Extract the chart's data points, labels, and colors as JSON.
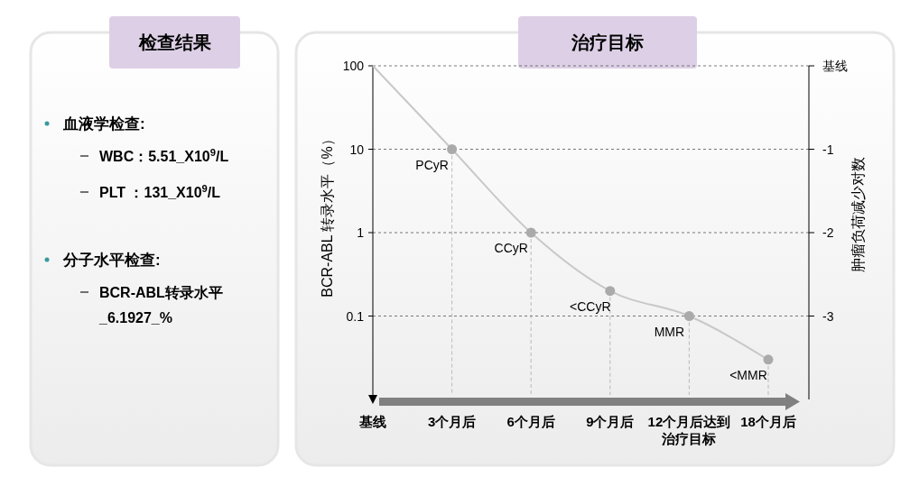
{
  "chart_data": [
    {
      "type": "other",
      "title": "检查结果",
      "annotations": [
        "血液学检查:",
        "WBC：5.51_X10$^{9}$/L",
        "PLT ：131_X10$^{9}$/L",
        "分子水平检查:",
        "BCR-ABL转录水平_6.1927_%"
      ]
    },
    {
      "type": "line",
      "title": "治疗目标",
      "ylabel": "BCR-ABL 转录水平（%）",
      "y2label": "肿瘤负荷减少对数",
      "categories": [
        "基线",
        "3个月后",
        "6个月后",
        "9个月后",
        "12个月后达到治疗目标",
        "18个月后"
      ],
      "series": [
        {
          "color": "#c8c8c8",
          "values": [
            100,
            10,
            1,
            0.2,
            0.1,
            0.03
          ]
        }
      ],
      "log": "y",
      "ylim": [
        0.01,
        100
      ],
      "yticks": [
        0.1,
        1,
        10,
        100
      ],
      "y2lim": [
        -4,
        0
      ],
      "y2ticks": [
        {
          "value": 0,
          "label": "基线"
        },
        -1,
        -2,
        -3
      ],
      "grid": "y",
      "marker": "circle",
      "line_style": "solid",
      "annotations": [
        {
          "text": "PCyR",
          "x": "3个月后",
          "y": 10
        },
        {
          "text": "CCyR",
          "x": "6个月后",
          "y": 1
        },
        {
          "text": "<CCyR",
          "x": "9个月后",
          "y": 0.2
        },
        {
          "text": "MMR",
          "x": "12个月后达到治疗目标",
          "y": 0.1
        },
        {
          "text": "<MMR",
          "x": "18个月后",
          "y": 0.03
        }
      ]
    }
  ]
}
